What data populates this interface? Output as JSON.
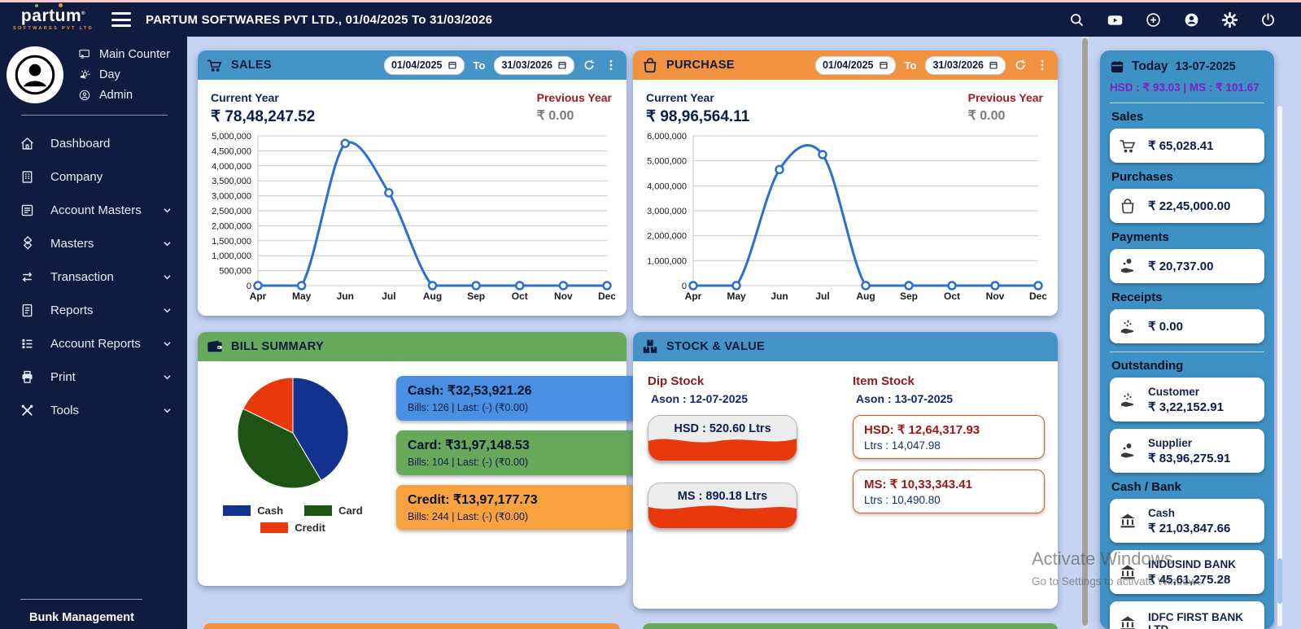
{
  "colors": {
    "navy": "#101c3f",
    "blue": "#4494c8",
    "orange": "#f0923f",
    "green": "#69a95e",
    "panel": "#3e91c5",
    "boxBlue": "#4a90e2",
    "boxGreen": "#67a85b",
    "boxOrange": "#f7a13f",
    "maroon": "#9c1b24",
    "navyText": "#10235e",
    "purple": "#7b1fc0",
    "bg": "#c6d3f2",
    "lineBlue": "#2b6fd3",
    "itemBorder": "#e8501e",
    "tankRed": "#e8380c"
  },
  "topbar": {
    "brand": "partum",
    "brand_sub": "SOFTWARES PVT LTD",
    "title": "PARTUM SOFTWARES PVT LTD., 01/04/2025 To 31/03/2026"
  },
  "profile": {
    "counter": "Main Counter",
    "shift": "Day",
    "role": "Admin"
  },
  "sidebar": {
    "menu": [
      {
        "label": "Dashboard",
        "expandable": false
      },
      {
        "label": "Company",
        "expandable": false
      },
      {
        "label": "Account Masters",
        "expandable": true
      },
      {
        "label": "Masters",
        "expandable": true
      },
      {
        "label": "Transaction",
        "expandable": true
      },
      {
        "label": "Reports",
        "expandable": true
      },
      {
        "label": "Account Reports",
        "expandable": true
      },
      {
        "label": "Print",
        "expandable": true
      },
      {
        "label": "Tools",
        "expandable": true
      }
    ],
    "footer": "Bunk Management"
  },
  "sales_card": {
    "title": "SALES",
    "date_from": "01/04/2025",
    "to_label": "To",
    "date_to": "31/03/2026",
    "current_year_label": "Current Year",
    "current_year_value": "₹ 78,48,247.52",
    "previous_year_label": "Previous Year",
    "previous_year_value": "₹ 0.00"
  },
  "purchase_card": {
    "title": "PURCHASE",
    "date_from": "01/04/2025",
    "to_label": "To",
    "date_to": "31/03/2026",
    "current_year_label": "Current Year",
    "current_year_value": "₹ 98,96,564.11",
    "previous_year_label": "Previous Year",
    "previous_year_value": "₹ 0.00"
  },
  "bill_summary": {
    "title": "BILL SUMMARY",
    "legend": [
      "Cash",
      "Card",
      "Credit"
    ],
    "boxes": [
      {
        "title": "Cash: ₹32,53,921.26",
        "subtitle": "Bills: 126 | Last: (-) (₹0.00)"
      },
      {
        "title": "Card: ₹31,97,148.53",
        "subtitle": "Bills: 104 | Last: (-) (₹0.00)"
      },
      {
        "title": "Credit: ₹13,97,177.73",
        "subtitle": "Bills: 244 | Last: (-) (₹0.00)"
      }
    ]
  },
  "stock_value": {
    "title": "STOCK & VALUE",
    "dip_label": "Dip Stock",
    "dip_ason": "Ason : 12-07-2025",
    "tanks": [
      {
        "label": "HSD : 520.60 Ltrs"
      },
      {
        "label": "MS : 890.18 Ltrs"
      }
    ],
    "item_label": "Item Stock",
    "item_ason": "Ason : 13-07-2025",
    "items": [
      {
        "title": "HSD: ₹ 12,64,317.93",
        "subtitle": "Ltrs : 14,047.98"
      },
      {
        "title": "MS: ₹ 10,33,343.41",
        "subtitle": "Ltrs : 10,490.80"
      }
    ]
  },
  "today_panel": {
    "label": "Today",
    "date": "13-07-2025",
    "rates": "HSD : ₹ 93.03 | MS : ₹ 101.67",
    "sales_label": "Sales",
    "sales_value": "₹ 65,028.41",
    "purchases_label": "Purchases",
    "purchases_value": "₹ 22,45,000.00",
    "payments_label": "Payments",
    "payments_value": "₹ 20,737.00",
    "receipts_label": "Receipts",
    "receipts_value": "₹ 0.00",
    "outstanding_label": "Outstanding",
    "customer_label": "Customer",
    "customer_value": "₹ 3,22,152.91",
    "supplier_label": "Supplier",
    "supplier_value": "₹ 83,96,275.91",
    "cashbank_label": "Cash / Bank",
    "cash_label": "Cash",
    "cash_value": "₹ 21,03,847.66",
    "bank1_label": "INDUSIND BANK",
    "bank1_value": "₹ 45,61,275.28",
    "bank2_label": "IDFC FIRST BANK LTD"
  },
  "watermark": {
    "line1": "Activate Windows",
    "line2": "Go to Settings to activate Windows."
  },
  "chart_data": [
    {
      "id": "sales-monthly",
      "type": "line",
      "title": "SALES Current Year by month",
      "x": [
        "Apr",
        "May",
        "Jun",
        "Jul",
        "Aug",
        "Sep",
        "Oct",
        "Nov",
        "Dec"
      ],
      "series": [
        {
          "name": "Current Year",
          "values": [
            0,
            0,
            4750000,
            3100000,
            0,
            0,
            0,
            0,
            0
          ]
        }
      ],
      "ylim": [
        0,
        5000000
      ],
      "ytick": 500000,
      "grid": true,
      "legend": "none",
      "color": "#2b6fd3"
    },
    {
      "id": "purchase-monthly",
      "type": "line",
      "title": "PURCHASE Current Year by month",
      "x": [
        "Apr",
        "May",
        "Jun",
        "Jul",
        "Aug",
        "Sep",
        "Oct",
        "Nov",
        "Dec"
      ],
      "series": [
        {
          "name": "Current Year",
          "values": [
            0,
            0,
            4650000,
            5250000,
            0,
            0,
            0,
            0,
            0
          ]
        }
      ],
      "ylim": [
        0,
        6000000
      ],
      "ytick": 1000000,
      "grid": true,
      "legend": "none",
      "color": "#2b6fd3"
    },
    {
      "id": "bill-summary-pie",
      "type": "pie",
      "title": "Bill Summary split",
      "labels": [
        "Cash",
        "Card",
        "Credit"
      ],
      "values": [
        3253921.26,
        3197148.53,
        1397177.73
      ],
      "colors": [
        "#12328e",
        "#1d5413",
        "#e8380c"
      ],
      "legend": "bottom"
    }
  ]
}
